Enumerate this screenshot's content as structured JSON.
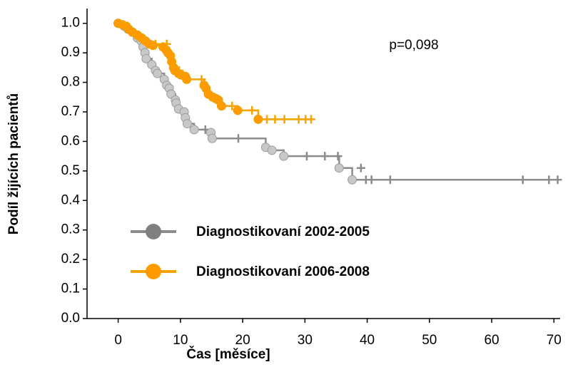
{
  "chart_data": {
    "type": "kaplan-meier",
    "xlabel": "Čas [měsíce]",
    "ylabel": "Podíl žijících pacientů",
    "annotation": "p=0,098",
    "xlim": [
      -5,
      71
    ],
    "xticks": [
      0,
      10,
      20,
      30,
      40,
      50,
      60,
      70
    ],
    "ylim": [
      0,
      1.05
    ],
    "yticks": [
      {
        "value": 0,
        "label": "0.0"
      },
      0.1,
      0.2,
      0.3,
      0.4,
      0.5,
      0.6,
      0.7,
      0.8,
      0.9,
      {
        "value": 1,
        "label": "1.0"
      }
    ],
    "legend": "lower-left",
    "series": [
      {
        "name": "Diagnostikovaní 2002-2005",
        "color": "#8c8c8c",
        "marker_color": "#c8c8c8",
        "x": [
          0,
          1,
          1.6,
          2.3,
          3.1,
          3.7,
          4,
          4.3,
          4.5,
          5.4,
          6,
          6.3,
          7.4,
          7.8,
          8.2,
          8.5,
          9.2,
          9.3,
          9.7,
          10.6,
          10.8,
          11.1,
          12.2,
          14.9,
          15.1,
          23.7,
          24.7,
          26.6,
          35.5,
          37.6
        ],
        "values": [
          1,
          0.99,
          0.98,
          0.97,
          0.95,
          0.94,
          0.92,
          0.9,
          0.88,
          0.86,
          0.84,
          0.83,
          0.81,
          0.79,
          0.78,
          0.76,
          0.74,
          0.73,
          0.71,
          0.7,
          0.68,
          0.66,
          0.64,
          0.63,
          0.61,
          0.58,
          0.57,
          0.55,
          0.51,
          0.47
        ],
        "censor_x": [
          14,
          19.3,
          30.3,
          33.2,
          35.3,
          39,
          39.8,
          40.7,
          43.7,
          65,
          69.2,
          70.6
        ],
        "censor_values": [
          0.64,
          0.61,
          0.55,
          0.55,
          0.55,
          0.51,
          0.47,
          0.47,
          0.47,
          0.47,
          0.47,
          0.47
        ]
      },
      {
        "name": "Diagnostikovaní 2006-2008",
        "color": "#f5a300",
        "marker_color": "#ff9a00",
        "x": [
          0,
          0.7,
          1.3,
          1.7,
          2.3,
          3.1,
          3.8,
          4.4,
          5,
          5.6,
          7.2,
          7.7,
          8,
          8.4,
          8.6,
          8.9,
          9.1,
          9.7,
          10.1,
          10.8,
          11,
          13.8,
          14.1,
          14.5,
          15.2,
          15.7,
          16.1,
          16.6,
          19.2,
          22.5
        ],
        "values": [
          1,
          0.995,
          0.99,
          0.98,
          0.97,
          0.96,
          0.95,
          0.94,
          0.93,
          0.925,
          0.92,
          0.91,
          0.9,
          0.89,
          0.87,
          0.85,
          0.84,
          0.83,
          0.825,
          0.82,
          0.81,
          0.79,
          0.78,
          0.76,
          0.75,
          0.745,
          0.74,
          0.72,
          0.705,
          0.675
        ],
        "censor_x": [
          6,
          7.8,
          9.8,
          13.4,
          18.3,
          21.5,
          23.9,
          25.2,
          26.7,
          29,
          30.1,
          31
        ],
        "censor_values": [
          0.93,
          0.93,
          0.84,
          0.81,
          0.72,
          0.705,
          0.675,
          0.675,
          0.675,
          0.675,
          0.675,
          0.675
        ]
      }
    ]
  }
}
